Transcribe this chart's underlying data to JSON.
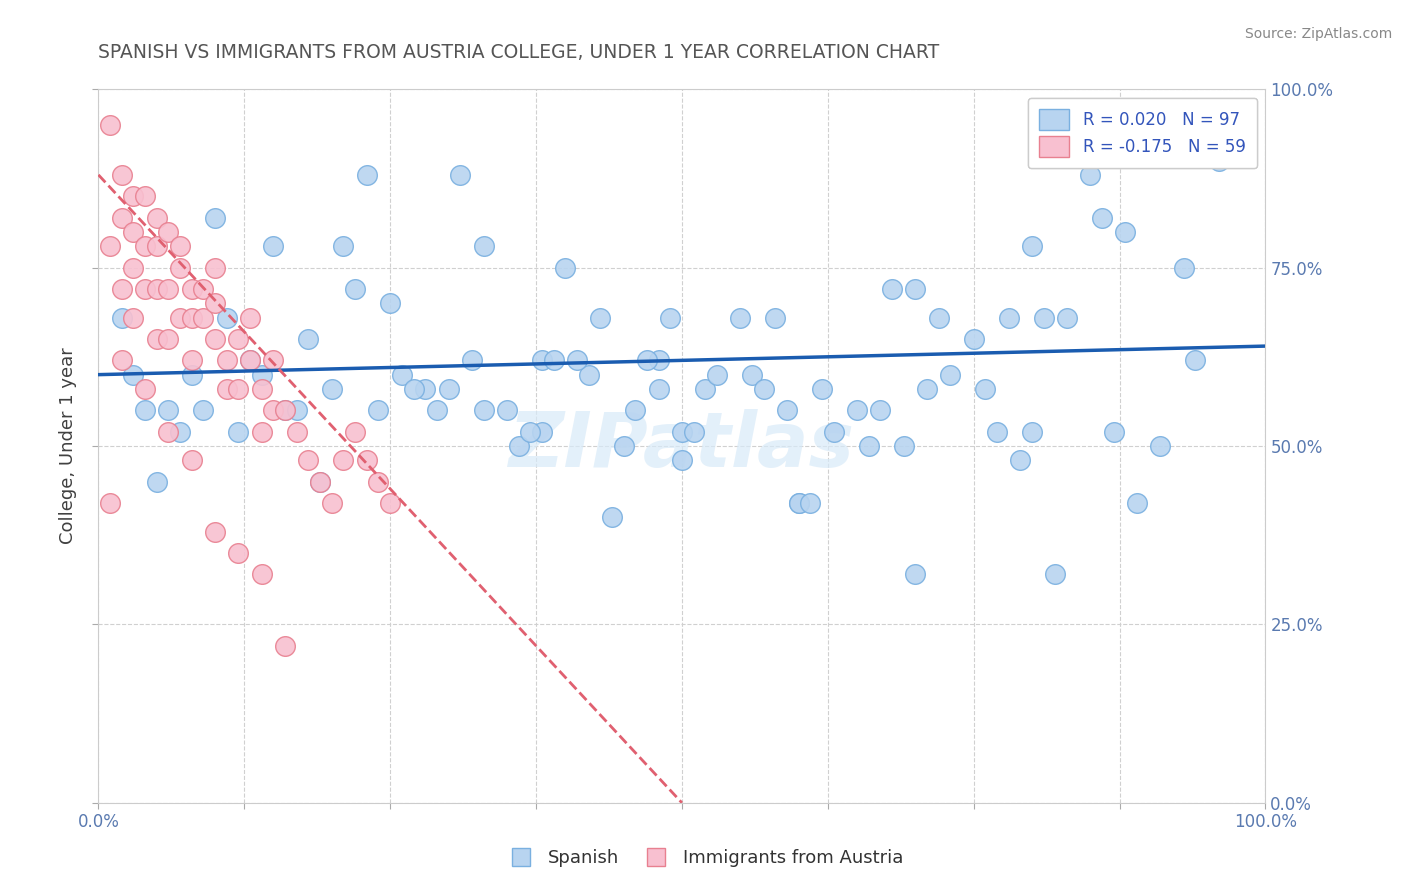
{
  "title": "SPANISH VS IMMIGRANTS FROM AUSTRIA COLLEGE, UNDER 1 YEAR CORRELATION CHART",
  "source": "Source: ZipAtlas.com",
  "ylabel": "College, Under 1 year",
  "legend_labels": [
    "Spanish",
    "Immigrants from Austria"
  ],
  "legend_r": [
    "R = 0.020",
    "R = -0.175"
  ],
  "legend_n": [
    "N = 97",
    "N = 59"
  ],
  "xlim": [
    0,
    1
  ],
  "ylim": [
    0,
    1
  ],
  "xticks": [
    0.0,
    0.125,
    0.25,
    0.375,
    0.5,
    0.625,
    0.75,
    0.875,
    1.0
  ],
  "yticks": [
    0.0,
    0.25,
    0.5,
    0.75,
    1.0
  ],
  "xtick_labels_bottom": [
    "0.0%",
    "",
    "",
    "",
    "",
    "",
    "",
    "",
    "100.0%"
  ],
  "ytick_labels_right": [
    "0.0%",
    "25.0%",
    "50.0%",
    "75.0%",
    "100.0%"
  ],
  "blue_color": "#b8d4f0",
  "blue_edge_color": "#7ab0e0",
  "pink_color": "#f8c0d0",
  "pink_edge_color": "#e88090",
  "blue_line_color": "#1a5cb0",
  "pink_line_color": "#e06070",
  "watermark_color": "#d8eaf8",
  "title_color": "#555555",
  "blue_scatter_x": [
    0.02,
    0.35,
    0.15,
    0.1,
    0.22,
    0.38,
    0.3,
    0.42,
    0.18,
    0.25,
    0.08,
    0.33,
    0.45,
    0.55,
    0.6,
    0.48,
    0.52,
    0.65,
    0.7,
    0.4,
    0.75,
    0.8,
    0.85,
    0.9,
    0.95,
    0.88,
    0.72,
    0.62,
    0.5,
    0.28,
    0.32,
    0.2,
    0.12,
    0.06,
    0.05,
    0.16,
    0.26,
    0.36,
    0.46,
    0.56,
    0.66,
    0.76,
    0.86,
    0.92,
    0.78,
    0.68,
    0.58,
    0.48,
    0.38,
    0.04,
    0.14,
    0.24,
    0.07,
    0.17,
    0.27,
    0.37,
    0.47,
    0.57,
    0.67,
    0.77,
    0.82,
    0.87,
    0.93,
    0.96,
    0.83,
    0.73,
    0.63,
    0.53,
    0.43,
    0.33,
    0.23,
    0.13,
    0.09,
    0.19,
    0.29,
    0.39,
    0.49,
    0.59,
    0.69,
    0.79,
    0.89,
    0.94,
    0.8,
    0.7,
    0.6,
    0.5,
    0.03,
    0.11,
    0.21,
    0.31,
    0.41,
    0.51,
    0.61,
    0.71,
    0.81,
    0.91,
    0.44
  ],
  "blue_scatter_y": [
    0.68,
    0.55,
    0.78,
    0.82,
    0.72,
    0.62,
    0.58,
    0.6,
    0.65,
    0.7,
    0.6,
    0.55,
    0.5,
    0.68,
    0.42,
    0.62,
    0.58,
    0.55,
    0.72,
    0.75,
    0.65,
    0.78,
    0.88,
    0.97,
    0.92,
    0.8,
    0.68,
    0.58,
    0.48,
    0.58,
    0.62,
    0.58,
    0.52,
    0.55,
    0.45,
    0.55,
    0.6,
    0.5,
    0.55,
    0.6,
    0.5,
    0.58,
    0.82,
    0.92,
    0.68,
    0.72,
    0.68,
    0.58,
    0.52,
    0.55,
    0.6,
    0.55,
    0.52,
    0.55,
    0.58,
    0.52,
    0.62,
    0.58,
    0.55,
    0.52,
    0.32,
    0.52,
    0.75,
    0.9,
    0.68,
    0.6,
    0.52,
    0.6,
    0.68,
    0.78,
    0.88,
    0.62,
    0.55,
    0.45,
    0.55,
    0.62,
    0.68,
    0.55,
    0.5,
    0.48,
    0.42,
    0.62,
    0.52,
    0.32,
    0.42,
    0.52,
    0.6,
    0.68,
    0.78,
    0.88,
    0.62,
    0.52,
    0.42,
    0.58,
    0.68,
    0.5,
    0.4
  ],
  "pink_scatter_x": [
    0.01,
    0.01,
    0.02,
    0.02,
    0.02,
    0.03,
    0.03,
    0.03,
    0.03,
    0.04,
    0.04,
    0.04,
    0.05,
    0.05,
    0.05,
    0.05,
    0.06,
    0.06,
    0.06,
    0.07,
    0.07,
    0.07,
    0.08,
    0.08,
    0.08,
    0.09,
    0.09,
    0.1,
    0.1,
    0.1,
    0.11,
    0.11,
    0.12,
    0.12,
    0.13,
    0.13,
    0.14,
    0.14,
    0.15,
    0.15,
    0.16,
    0.17,
    0.18,
    0.19,
    0.2,
    0.21,
    0.22,
    0.23,
    0.24,
    0.25,
    0.02,
    0.04,
    0.06,
    0.08,
    0.1,
    0.12,
    0.14,
    0.16,
    0.01
  ],
  "pink_scatter_y": [
    0.95,
    0.78,
    0.82,
    0.88,
    0.72,
    0.75,
    0.8,
    0.85,
    0.68,
    0.72,
    0.78,
    0.85,
    0.78,
    0.72,
    0.65,
    0.82,
    0.8,
    0.72,
    0.65,
    0.75,
    0.68,
    0.78,
    0.68,
    0.62,
    0.72,
    0.68,
    0.72,
    0.7,
    0.65,
    0.75,
    0.62,
    0.58,
    0.58,
    0.65,
    0.62,
    0.68,
    0.58,
    0.52,
    0.55,
    0.62,
    0.55,
    0.52,
    0.48,
    0.45,
    0.42,
    0.48,
    0.52,
    0.48,
    0.45,
    0.42,
    0.62,
    0.58,
    0.52,
    0.48,
    0.38,
    0.35,
    0.32,
    0.22,
    0.42
  ],
  "blue_line_start_y": 0.6,
  "blue_line_end_y": 0.64,
  "pink_line_start_x": 0.0,
  "pink_line_start_y": 0.88,
  "pink_line_end_x": 0.5,
  "pink_line_end_y": 0.0
}
